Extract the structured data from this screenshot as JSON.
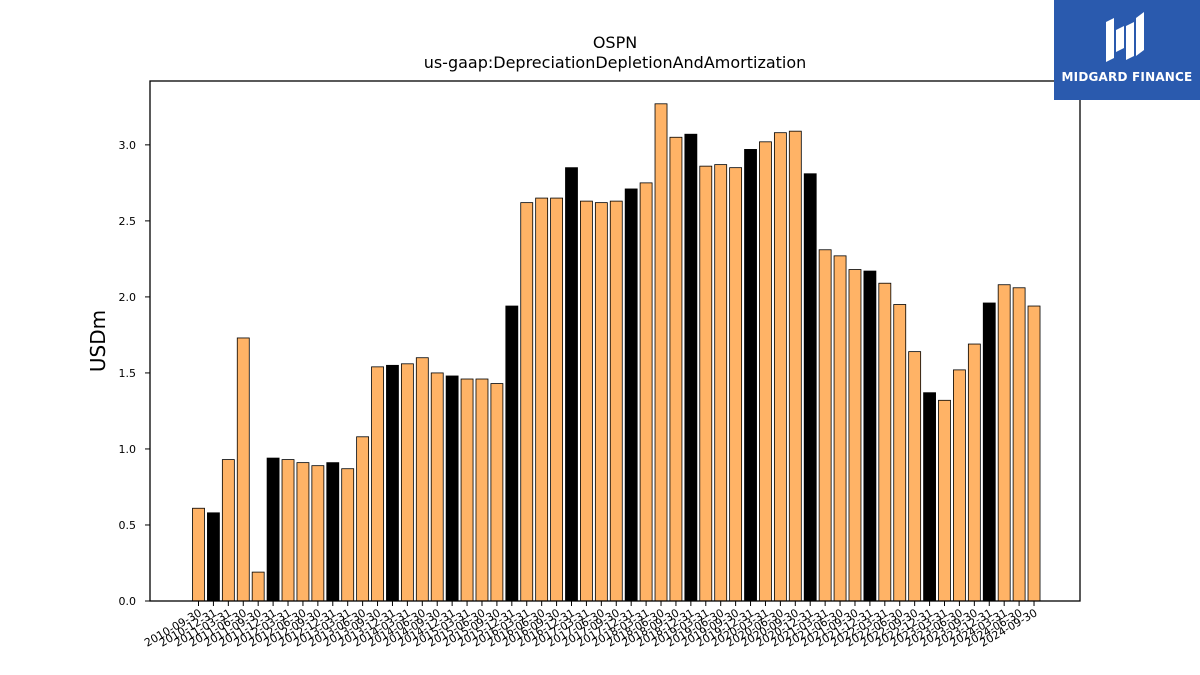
{
  "chart_data": {
    "type": "bar",
    "title": "OSPN",
    "subtitle": "us-gaap:DepreciationDepletionAndAmortization",
    "xlabel": "",
    "ylabel": "USDm",
    "ylim": [
      0,
      3.42
    ],
    "yticks": [
      "0.0",
      "0.5",
      "1.0",
      "1.5",
      "2.0",
      "2.5",
      "3.0"
    ],
    "grid": false,
    "legend": "none",
    "colors": {
      "quarter": "#ffb366",
      "fiscal_year_end": "#000000",
      "edge": "#000000"
    },
    "categories": [
      "2010-09-30",
      "2010-12-31",
      "2011-03-31",
      "2011-06-30",
      "2011-09-30",
      "2011-12-31",
      "2012-03-31",
      "2012-06-30",
      "2012-09-30",
      "2012-12-31",
      "2013-03-31",
      "2013-06-30",
      "2013-09-30",
      "2013-12-31",
      "2014-03-31",
      "2014-06-30",
      "2014-09-30",
      "2014-12-31",
      "2015-03-31",
      "2015-06-30",
      "2015-09-30",
      "2015-12-31",
      "2016-03-31",
      "2016-06-30",
      "2016-09-30",
      "2016-12-31",
      "2017-03-31",
      "2017-06-30",
      "2017-09-30",
      "2017-12-31",
      "2018-03-31",
      "2018-06-30",
      "2018-09-30",
      "2018-12-31",
      "2019-03-31",
      "2019-06-30",
      "2019-09-30",
      "2019-12-31",
      "2020-03-31",
      "2020-06-30",
      "2020-09-30",
      "2020-12-31",
      "2021-03-31",
      "2021-06-30",
      "2021-09-30",
      "2021-12-31",
      "2022-03-31",
      "2022-06-30",
      "2022-09-30",
      "2022-12-31",
      "2023-03-31",
      "2023-06-30",
      "2023-09-30",
      "2023-12-31",
      "2024-03-31",
      "2024-06-30",
      "2024-09-30"
    ],
    "values": [
      0.61,
      0.58,
      0.93,
      1.73,
      0.19,
      0.94,
      0.93,
      0.91,
      0.89,
      0.91,
      0.87,
      1.08,
      1.54,
      1.55,
      1.56,
      1.6,
      1.5,
      1.48,
      1.46,
      1.46,
      1.43,
      1.94,
      2.62,
      2.65,
      2.65,
      2.85,
      2.63,
      2.62,
      2.63,
      2.71,
      2.75,
      3.27,
      3.05,
      3.07,
      2.86,
      2.87,
      2.85,
      2.97,
      3.02,
      3.08,
      3.09,
      2.81,
      2.31,
      2.27,
      2.18,
      2.17,
      2.09,
      1.95,
      1.64,
      1.37,
      1.32,
      1.52,
      1.69,
      1.96,
      2.08,
      2.06,
      1.94
    ],
    "fiscal_year_end": [
      false,
      true,
      false,
      false,
      false,
      true,
      false,
      false,
      false,
      true,
      false,
      false,
      false,
      true,
      false,
      false,
      false,
      true,
      false,
      false,
      false,
      true,
      false,
      false,
      false,
      true,
      false,
      false,
      false,
      true,
      false,
      false,
      false,
      true,
      false,
      false,
      false,
      true,
      false,
      false,
      false,
      true,
      false,
      false,
      false,
      true,
      false,
      false,
      false,
      true,
      false,
      false,
      false,
      true,
      false,
      false,
      false
    ]
  },
  "logo": {
    "text": "MIDGARD FINANCE",
    "icon": "midgard-logo-icon"
  }
}
